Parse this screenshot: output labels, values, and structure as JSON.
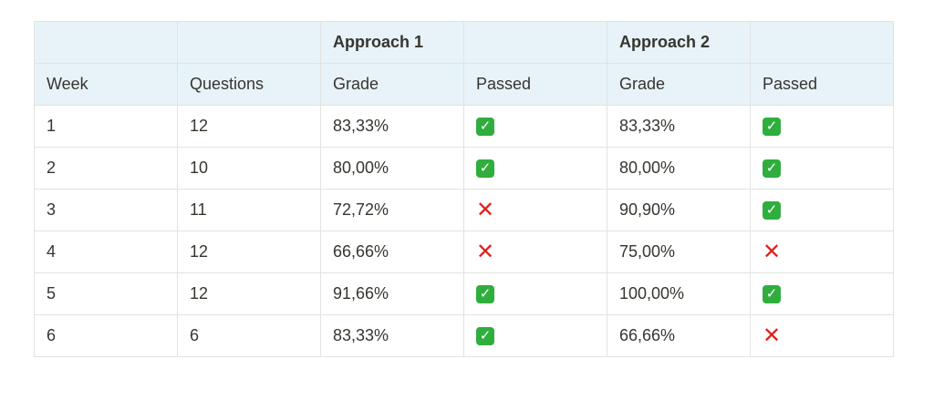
{
  "table": {
    "group_headers": [
      "",
      "",
      "Approach 1",
      "",
      "Approach 2",
      ""
    ],
    "column_headers": [
      "Week",
      "Questions",
      "Grade",
      "Passed",
      "Grade",
      "Passed"
    ],
    "status_icons": {
      "pass": {
        "name": "check-mark-icon",
        "glyph": "✓",
        "color": "#2fae3e"
      },
      "fail": {
        "name": "cross-mark-icon",
        "glyph": "✕",
        "color": "#e0201c"
      }
    },
    "rows": [
      {
        "week": "1",
        "questions": "12",
        "a1_grade": "83,33%",
        "a1_passed": "pass",
        "a2_grade": "83,33%",
        "a2_passed": "pass"
      },
      {
        "week": "2",
        "questions": "10",
        "a1_grade": "80,00%",
        "a1_passed": "pass",
        "a2_grade": "80,00%",
        "a2_passed": "pass"
      },
      {
        "week": "3",
        "questions": "11",
        "a1_grade": "72,72%",
        "a1_passed": "fail",
        "a2_grade": "90,90%",
        "a2_passed": "pass"
      },
      {
        "week": "4",
        "questions": "12",
        "a1_grade": "66,66%",
        "a1_passed": "fail",
        "a2_grade": "75,00%",
        "a2_passed": "fail"
      },
      {
        "week": "5",
        "questions": "12",
        "a1_grade": "91,66%",
        "a1_passed": "pass",
        "a2_grade": "100,00%",
        "a2_passed": "pass"
      },
      {
        "week": "6",
        "questions": "6",
        "a1_grade": "83,33%",
        "a1_passed": "pass",
        "a2_grade": "66,66%",
        "a2_passed": "fail"
      }
    ]
  }
}
